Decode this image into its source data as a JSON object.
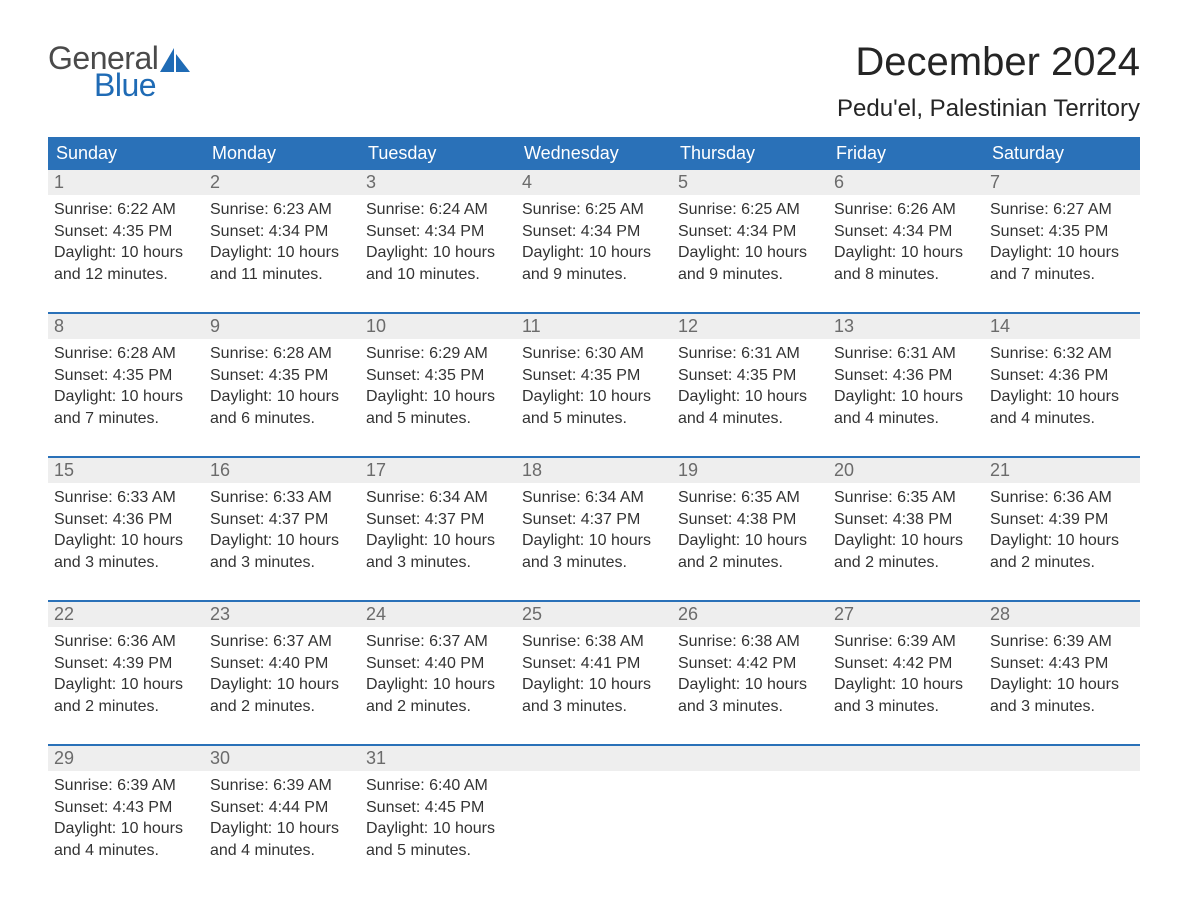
{
  "logo": {
    "text_general": "General",
    "text_blue": "Blue",
    "sail_color": "#1f6bb5",
    "text_gray": "#4a4a4a"
  },
  "title": "December 2024",
  "location": "Pedu'el, Palestinian Territory",
  "colors": {
    "header_bg": "#2a71b8",
    "header_text": "#ffffff",
    "daynum_bg": "#eeeeee",
    "daynum_text": "#6b6b6b",
    "body_text": "#333333",
    "week_border": "#2a71b8",
    "page_bg": "#ffffff"
  },
  "typography": {
    "month_title_fontsize": 40,
    "location_fontsize": 24,
    "weekday_fontsize": 18,
    "daynum_fontsize": 18,
    "body_fontsize": 16,
    "font_family": "Arial"
  },
  "weekdays": [
    "Sunday",
    "Monday",
    "Tuesday",
    "Wednesday",
    "Thursday",
    "Friday",
    "Saturday"
  ],
  "weeks": [
    [
      {
        "n": "1",
        "sr": "Sunrise: 6:22 AM",
        "ss": "Sunset: 4:35 PM",
        "d1": "Daylight: 10 hours",
        "d2": "and 12 minutes."
      },
      {
        "n": "2",
        "sr": "Sunrise: 6:23 AM",
        "ss": "Sunset: 4:34 PM",
        "d1": "Daylight: 10 hours",
        "d2": "and 11 minutes."
      },
      {
        "n": "3",
        "sr": "Sunrise: 6:24 AM",
        "ss": "Sunset: 4:34 PM",
        "d1": "Daylight: 10 hours",
        "d2": "and 10 minutes."
      },
      {
        "n": "4",
        "sr": "Sunrise: 6:25 AM",
        "ss": "Sunset: 4:34 PM",
        "d1": "Daylight: 10 hours",
        "d2": "and 9 minutes."
      },
      {
        "n": "5",
        "sr": "Sunrise: 6:25 AM",
        "ss": "Sunset: 4:34 PM",
        "d1": "Daylight: 10 hours",
        "d2": "and 9 minutes."
      },
      {
        "n": "6",
        "sr": "Sunrise: 6:26 AM",
        "ss": "Sunset: 4:34 PM",
        "d1": "Daylight: 10 hours",
        "d2": "and 8 minutes."
      },
      {
        "n": "7",
        "sr": "Sunrise: 6:27 AM",
        "ss": "Sunset: 4:35 PM",
        "d1": "Daylight: 10 hours",
        "d2": "and 7 minutes."
      }
    ],
    [
      {
        "n": "8",
        "sr": "Sunrise: 6:28 AM",
        "ss": "Sunset: 4:35 PM",
        "d1": "Daylight: 10 hours",
        "d2": "and 7 minutes."
      },
      {
        "n": "9",
        "sr": "Sunrise: 6:28 AM",
        "ss": "Sunset: 4:35 PM",
        "d1": "Daylight: 10 hours",
        "d2": "and 6 minutes."
      },
      {
        "n": "10",
        "sr": "Sunrise: 6:29 AM",
        "ss": "Sunset: 4:35 PM",
        "d1": "Daylight: 10 hours",
        "d2": "and 5 minutes."
      },
      {
        "n": "11",
        "sr": "Sunrise: 6:30 AM",
        "ss": "Sunset: 4:35 PM",
        "d1": "Daylight: 10 hours",
        "d2": "and 5 minutes."
      },
      {
        "n": "12",
        "sr": "Sunrise: 6:31 AM",
        "ss": "Sunset: 4:35 PM",
        "d1": "Daylight: 10 hours",
        "d2": "and 4 minutes."
      },
      {
        "n": "13",
        "sr": "Sunrise: 6:31 AM",
        "ss": "Sunset: 4:36 PM",
        "d1": "Daylight: 10 hours",
        "d2": "and 4 minutes."
      },
      {
        "n": "14",
        "sr": "Sunrise: 6:32 AM",
        "ss": "Sunset: 4:36 PM",
        "d1": "Daylight: 10 hours",
        "d2": "and 4 minutes."
      }
    ],
    [
      {
        "n": "15",
        "sr": "Sunrise: 6:33 AM",
        "ss": "Sunset: 4:36 PM",
        "d1": "Daylight: 10 hours",
        "d2": "and 3 minutes."
      },
      {
        "n": "16",
        "sr": "Sunrise: 6:33 AM",
        "ss": "Sunset: 4:37 PM",
        "d1": "Daylight: 10 hours",
        "d2": "and 3 minutes."
      },
      {
        "n": "17",
        "sr": "Sunrise: 6:34 AM",
        "ss": "Sunset: 4:37 PM",
        "d1": "Daylight: 10 hours",
        "d2": "and 3 minutes."
      },
      {
        "n": "18",
        "sr": "Sunrise: 6:34 AM",
        "ss": "Sunset: 4:37 PM",
        "d1": "Daylight: 10 hours",
        "d2": "and 3 minutes."
      },
      {
        "n": "19",
        "sr": "Sunrise: 6:35 AM",
        "ss": "Sunset: 4:38 PM",
        "d1": "Daylight: 10 hours",
        "d2": "and 2 minutes."
      },
      {
        "n": "20",
        "sr": "Sunrise: 6:35 AM",
        "ss": "Sunset: 4:38 PM",
        "d1": "Daylight: 10 hours",
        "d2": "and 2 minutes."
      },
      {
        "n": "21",
        "sr": "Sunrise: 6:36 AM",
        "ss": "Sunset: 4:39 PM",
        "d1": "Daylight: 10 hours",
        "d2": "and 2 minutes."
      }
    ],
    [
      {
        "n": "22",
        "sr": "Sunrise: 6:36 AM",
        "ss": "Sunset: 4:39 PM",
        "d1": "Daylight: 10 hours",
        "d2": "and 2 minutes."
      },
      {
        "n": "23",
        "sr": "Sunrise: 6:37 AM",
        "ss": "Sunset: 4:40 PM",
        "d1": "Daylight: 10 hours",
        "d2": "and 2 minutes."
      },
      {
        "n": "24",
        "sr": "Sunrise: 6:37 AM",
        "ss": "Sunset: 4:40 PM",
        "d1": "Daylight: 10 hours",
        "d2": "and 2 minutes."
      },
      {
        "n": "25",
        "sr": "Sunrise: 6:38 AM",
        "ss": "Sunset: 4:41 PM",
        "d1": "Daylight: 10 hours",
        "d2": "and 3 minutes."
      },
      {
        "n": "26",
        "sr": "Sunrise: 6:38 AM",
        "ss": "Sunset: 4:42 PM",
        "d1": "Daylight: 10 hours",
        "d2": "and 3 minutes."
      },
      {
        "n": "27",
        "sr": "Sunrise: 6:39 AM",
        "ss": "Sunset: 4:42 PM",
        "d1": "Daylight: 10 hours",
        "d2": "and 3 minutes."
      },
      {
        "n": "28",
        "sr": "Sunrise: 6:39 AM",
        "ss": "Sunset: 4:43 PM",
        "d1": "Daylight: 10 hours",
        "d2": "and 3 minutes."
      }
    ],
    [
      {
        "n": "29",
        "sr": "Sunrise: 6:39 AM",
        "ss": "Sunset: 4:43 PM",
        "d1": "Daylight: 10 hours",
        "d2": "and 4 minutes."
      },
      {
        "n": "30",
        "sr": "Sunrise: 6:39 AM",
        "ss": "Sunset: 4:44 PM",
        "d1": "Daylight: 10 hours",
        "d2": "and 4 minutes."
      },
      {
        "n": "31",
        "sr": "Sunrise: 6:40 AM",
        "ss": "Sunset: 4:45 PM",
        "d1": "Daylight: 10 hours",
        "d2": "and 5 minutes."
      },
      {
        "empty": true
      },
      {
        "empty": true
      },
      {
        "empty": true
      },
      {
        "empty": true
      }
    ]
  ]
}
